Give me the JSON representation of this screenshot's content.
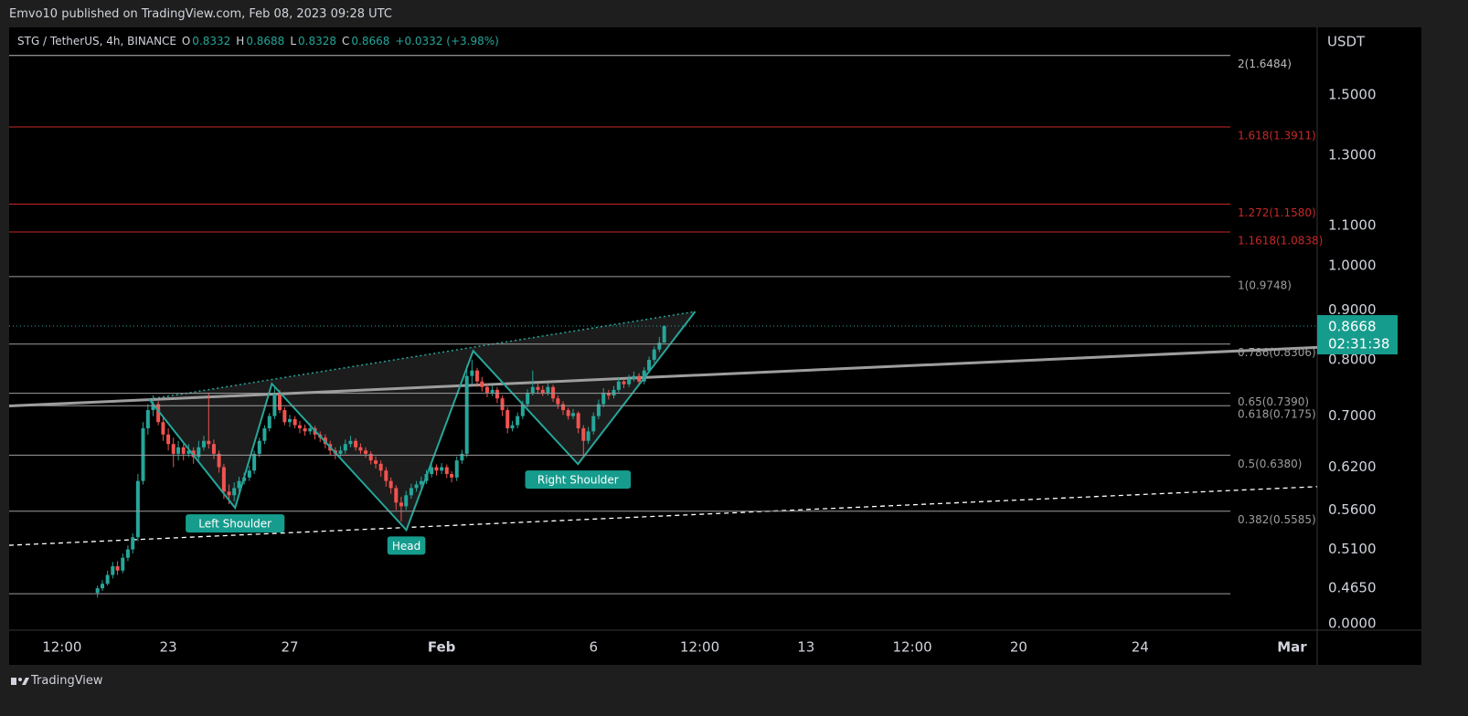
{
  "header": {
    "publisher": "Emvo10 published on TradingView.com, Feb 08, 2023 09:28 UTC"
  },
  "footer": {
    "brand": "TradingView"
  },
  "chart_data": {
    "type": "candlestick",
    "symbol": "STG / TetherUS, 4h, BINANCE",
    "ohlc": [
      {
        "label": "O",
        "value": 0.8332
      },
      {
        "label": "H",
        "value": 0.8688
      },
      {
        "label": "L",
        "value": 0.8328
      },
      {
        "label": "C",
        "value": 0.8668
      }
    ],
    "change": "+0.0332 (+3.98%)",
    "currency": "USDT",
    "log_scale": true,
    "up_color": "#26a69a",
    "down_color": "#ef5350",
    "ylim": [
      0.421,
      1.762
    ],
    "yticks": [
      {
        "value": 1.5,
        "label": "1.5000"
      },
      {
        "value": 1.3,
        "label": "1.3000"
      },
      {
        "value": 1.1,
        "label": "1.1000"
      },
      {
        "value": 1.0,
        "label": "1.0000"
      },
      {
        "value": 0.9,
        "label": "0.9000"
      },
      {
        "value": 0.8,
        "label": "0.8000"
      },
      {
        "value": 0.7,
        "label": "0.7000"
      },
      {
        "value": 0.62,
        "label": "0.6200"
      },
      {
        "value": 0.56,
        "label": "0.5600"
      },
      {
        "value": 0.51,
        "label": "0.5100"
      },
      {
        "value": 0.465,
        "label": "0.4650"
      }
    ],
    "axis_bottom_label": "0.0000",
    "xlim": [
      17.76,
      60.83
    ],
    "xticks": [
      {
        "value": 19.5,
        "label": "12:00"
      },
      {
        "value": 23,
        "label": "23"
      },
      {
        "value": 27,
        "label": "27"
      },
      {
        "value": 32,
        "label": "Feb"
      },
      {
        "value": 37,
        "label": "6"
      },
      {
        "value": 40.5,
        "label": "12:00"
      },
      {
        "value": 44,
        "label": "13"
      },
      {
        "value": 47.5,
        "label": "12:00"
      },
      {
        "value": 51,
        "label": "20"
      },
      {
        "value": 55,
        "label": "24"
      },
      {
        "value": 60,
        "label": "Mar"
      }
    ],
    "last_price": 0.8668,
    "countdown": "02:31:38",
    "fib_levels": [
      {
        "label": "2(1.6484)",
        "value": 1.6484,
        "color": "#bbbbbb"
      },
      {
        "label": "1.618(1.3911)",
        "value": 1.3911,
        "color": "#c62828"
      },
      {
        "label": "1.272(1.1580)",
        "value": 1.158,
        "color": "#c62828"
      },
      {
        "label": "1.1618(1.0838)",
        "value": 1.0838,
        "color": "#c62828"
      },
      {
        "label": "1(0.9748)",
        "value": 0.9748,
        "color": "#9e9e9e"
      },
      {
        "label": "0.786(0.8306)",
        "value": 0.8306,
        "color": "#9e9e9e"
      },
      {
        "label": "0.65(0.7390)",
        "value": 0.739,
        "color": "#9e9e9e"
      },
      {
        "label": "0.618(0.7175)",
        "value": 0.7175,
        "color": "#9e9e9e"
      },
      {
        "label": "0.5(0.6380)",
        "value": 0.638,
        "color": "#9e9e9e"
      },
      {
        "label": "0.382(0.5585)",
        "value": 0.5585,
        "color": "#9e9e9e"
      },
      {
        "value": 0.459,
        "color": "#9e9e9e"
      }
    ],
    "trendline": {
      "x": [
        17.76,
        60.83
      ],
      "y": [
        0.717,
        0.824
      ],
      "color": "#9e9e9e"
    },
    "support_line": {
      "x": [
        17.76,
        60.83
      ],
      "y": [
        0.515,
        0.592
      ],
      "color": "#ffffff"
    },
    "pattern": {
      "color": "#26a69a",
      "x": [
        22.37,
        25.2,
        26.41,
        30.84,
        33.04,
        36.49,
        40.35
      ],
      "y": [
        0.7286,
        0.5628,
        0.7558,
        0.534,
        0.8173,
        0.6246,
        0.8972
      ]
    },
    "annotations": [
      {
        "text": "Left Shoulder",
        "x": 25.2,
        "y": 0.5628
      },
      {
        "text": "Head",
        "x": 30.84,
        "y": 0.534
      },
      {
        "text": "Right Shoulder",
        "x": 36.49,
        "y": 0.6246
      }
    ],
    "candles": [
      [
        20.67,
        0.46,
        0.468,
        0.455,
        0.465
      ],
      [
        20.83,
        0.465,
        0.474,
        0.462,
        0.47
      ],
      [
        21.0,
        0.47,
        0.485,
        0.468,
        0.48
      ],
      [
        21.17,
        0.48,
        0.495,
        0.476,
        0.49
      ],
      [
        21.33,
        0.49,
        0.496,
        0.48,
        0.485
      ],
      [
        21.5,
        0.485,
        0.505,
        0.482,
        0.5
      ],
      [
        21.67,
        0.5,
        0.515,
        0.496,
        0.51
      ],
      [
        21.83,
        0.51,
        0.53,
        0.505,
        0.525
      ],
      [
        22.0,
        0.525,
        0.61,
        0.52,
        0.6
      ],
      [
        22.17,
        0.6,
        0.69,
        0.595,
        0.68
      ],
      [
        22.33,
        0.68,
        0.72,
        0.67,
        0.71
      ],
      [
        22.5,
        0.71,
        0.735,
        0.7,
        0.72
      ],
      [
        22.67,
        0.72,
        0.725,
        0.685,
        0.69
      ],
      [
        22.83,
        0.69,
        0.7,
        0.66,
        0.67
      ],
      [
        23.0,
        0.67,
        0.68,
        0.645,
        0.655
      ],
      [
        23.17,
        0.655,
        0.665,
        0.62,
        0.64
      ],
      [
        23.33,
        0.64,
        0.66,
        0.63,
        0.65
      ],
      [
        23.5,
        0.65,
        0.655,
        0.63,
        0.64
      ],
      [
        23.67,
        0.64,
        0.655,
        0.635,
        0.645
      ],
      [
        23.83,
        0.645,
        0.65,
        0.625,
        0.635
      ],
      [
        24.0,
        0.635,
        0.66,
        0.63,
        0.65
      ],
      [
        24.17,
        0.65,
        0.668,
        0.645,
        0.66
      ],
      [
        24.33,
        0.66,
        0.74,
        0.648,
        0.655
      ],
      [
        24.5,
        0.655,
        0.662,
        0.632,
        0.64
      ],
      [
        24.67,
        0.64,
        0.645,
        0.612,
        0.62
      ],
      [
        24.83,
        0.62,
        0.625,
        0.575,
        0.585
      ],
      [
        25.0,
        0.585,
        0.595,
        0.568,
        0.58
      ],
      [
        25.17,
        0.58,
        0.598,
        0.572,
        0.59
      ],
      [
        25.33,
        0.59,
        0.606,
        0.585,
        0.6
      ],
      [
        25.5,
        0.6,
        0.612,
        0.595,
        0.605
      ],
      [
        25.67,
        0.605,
        0.622,
        0.6,
        0.615
      ],
      [
        25.83,
        0.615,
        0.645,
        0.61,
        0.64
      ],
      [
        26.0,
        0.64,
        0.665,
        0.635,
        0.66
      ],
      [
        26.17,
        0.66,
        0.685,
        0.655,
        0.68
      ],
      [
        26.33,
        0.68,
        0.705,
        0.675,
        0.7
      ],
      [
        26.5,
        0.7,
        0.75,
        0.695,
        0.74
      ],
      [
        26.67,
        0.74,
        0.745,
        0.705,
        0.71
      ],
      [
        26.83,
        0.71,
        0.715,
        0.685,
        0.69
      ],
      [
        27.0,
        0.69,
        0.702,
        0.682,
        0.695
      ],
      [
        27.17,
        0.695,
        0.7,
        0.68,
        0.685
      ],
      [
        27.33,
        0.685,
        0.692,
        0.672,
        0.68
      ],
      [
        27.5,
        0.68,
        0.686,
        0.668,
        0.675
      ],
      [
        27.67,
        0.675,
        0.688,
        0.67,
        0.68
      ],
      [
        27.83,
        0.68,
        0.684,
        0.662,
        0.67
      ],
      [
        28.0,
        0.67,
        0.675,
        0.658,
        0.665
      ],
      [
        28.17,
        0.665,
        0.67,
        0.648,
        0.655
      ],
      [
        28.33,
        0.655,
        0.66,
        0.638,
        0.645
      ],
      [
        28.5,
        0.645,
        0.65,
        0.632,
        0.64
      ],
      [
        28.67,
        0.64,
        0.652,
        0.636,
        0.645
      ],
      [
        28.83,
        0.645,
        0.662,
        0.64,
        0.655
      ],
      [
        29.0,
        0.655,
        0.668,
        0.65,
        0.66
      ],
      [
        29.17,
        0.66,
        0.664,
        0.645,
        0.65
      ],
      [
        29.33,
        0.65,
        0.656,
        0.64,
        0.645
      ],
      [
        29.5,
        0.645,
        0.65,
        0.634,
        0.64
      ],
      [
        29.67,
        0.64,
        0.644,
        0.624,
        0.63
      ],
      [
        29.83,
        0.63,
        0.636,
        0.618,
        0.625
      ],
      [
        30.0,
        0.625,
        0.63,
        0.606,
        0.615
      ],
      [
        30.17,
        0.615,
        0.62,
        0.592,
        0.6
      ],
      [
        30.33,
        0.6,
        0.605,
        0.582,
        0.59
      ],
      [
        30.5,
        0.59,
        0.594,
        0.56,
        0.57
      ],
      [
        30.67,
        0.57,
        0.578,
        0.545,
        0.565
      ],
      [
        30.83,
        0.565,
        0.586,
        0.56,
        0.58
      ],
      [
        31.0,
        0.58,
        0.596,
        0.575,
        0.59
      ],
      [
        31.17,
        0.59,
        0.6,
        0.585,
        0.595
      ],
      [
        31.33,
        0.595,
        0.606,
        0.59,
        0.6
      ],
      [
        31.5,
        0.6,
        0.616,
        0.596,
        0.61
      ],
      [
        31.67,
        0.61,
        0.626,
        0.605,
        0.62
      ],
      [
        31.83,
        0.62,
        0.624,
        0.608,
        0.615
      ],
      [
        32.0,
        0.615,
        0.626,
        0.61,
        0.62
      ],
      [
        32.17,
        0.62,
        0.624,
        0.604,
        0.61
      ],
      [
        32.33,
        0.61,
        0.614,
        0.598,
        0.605
      ],
      [
        32.5,
        0.605,
        0.636,
        0.6,
        0.63
      ],
      [
        32.67,
        0.63,
        0.646,
        0.625,
        0.64
      ],
      [
        32.83,
        0.64,
        0.79,
        0.635,
        0.77
      ],
      [
        33.0,
        0.77,
        0.8,
        0.755,
        0.78
      ],
      [
        33.17,
        0.78,
        0.785,
        0.75,
        0.76
      ],
      [
        33.33,
        0.76,
        0.768,
        0.742,
        0.75
      ],
      [
        33.5,
        0.75,
        0.756,
        0.732,
        0.74
      ],
      [
        33.67,
        0.74,
        0.752,
        0.734,
        0.745
      ],
      [
        33.83,
        0.745,
        0.75,
        0.722,
        0.73
      ],
      [
        34.0,
        0.73,
        0.735,
        0.7,
        0.71
      ],
      [
        34.17,
        0.71,
        0.715,
        0.672,
        0.68
      ],
      [
        34.33,
        0.68,
        0.692,
        0.675,
        0.685
      ],
      [
        34.5,
        0.685,
        0.706,
        0.68,
        0.7
      ],
      [
        34.67,
        0.7,
        0.726,
        0.695,
        0.72
      ],
      [
        34.83,
        0.72,
        0.746,
        0.715,
        0.74
      ],
      [
        35.0,
        0.74,
        0.78,
        0.735,
        0.75
      ],
      [
        35.17,
        0.75,
        0.756,
        0.738,
        0.745
      ],
      [
        35.33,
        0.745,
        0.752,
        0.734,
        0.74
      ],
      [
        35.5,
        0.74,
        0.758,
        0.735,
        0.75
      ],
      [
        35.67,
        0.75,
        0.754,
        0.724,
        0.73
      ],
      [
        35.83,
        0.73,
        0.735,
        0.712,
        0.72
      ],
      [
        36.0,
        0.72,
        0.725,
        0.702,
        0.71
      ],
      [
        36.17,
        0.71,
        0.714,
        0.694,
        0.7
      ],
      [
        36.33,
        0.7,
        0.712,
        0.695,
        0.705
      ],
      [
        36.5,
        0.705,
        0.708,
        0.672,
        0.68
      ],
      [
        36.67,
        0.68,
        0.685,
        0.635,
        0.66
      ],
      [
        36.83,
        0.66,
        0.682,
        0.655,
        0.675
      ],
      [
        37.0,
        0.675,
        0.706,
        0.67,
        0.7
      ],
      [
        37.17,
        0.7,
        0.728,
        0.695,
        0.72
      ],
      [
        37.33,
        0.72,
        0.748,
        0.715,
        0.74
      ],
      [
        37.5,
        0.74,
        0.745,
        0.728,
        0.735
      ],
      [
        37.67,
        0.735,
        0.752,
        0.73,
        0.745
      ],
      [
        37.83,
        0.745,
        0.768,
        0.74,
        0.76
      ],
      [
        38.0,
        0.76,
        0.765,
        0.748,
        0.755
      ],
      [
        38.17,
        0.755,
        0.772,
        0.75,
        0.765
      ],
      [
        38.33,
        0.765,
        0.778,
        0.76,
        0.77
      ],
      [
        38.5,
        0.77,
        0.775,
        0.752,
        0.76
      ],
      [
        38.67,
        0.76,
        0.786,
        0.755,
        0.78
      ],
      [
        38.83,
        0.78,
        0.806,
        0.775,
        0.8
      ],
      [
        39.0,
        0.8,
        0.826,
        0.795,
        0.82
      ],
      [
        39.17,
        0.82,
        0.845,
        0.815,
        0.8332
      ],
      [
        39.33,
        0.8332,
        0.8688,
        0.8328,
        0.8668
      ]
    ]
  }
}
